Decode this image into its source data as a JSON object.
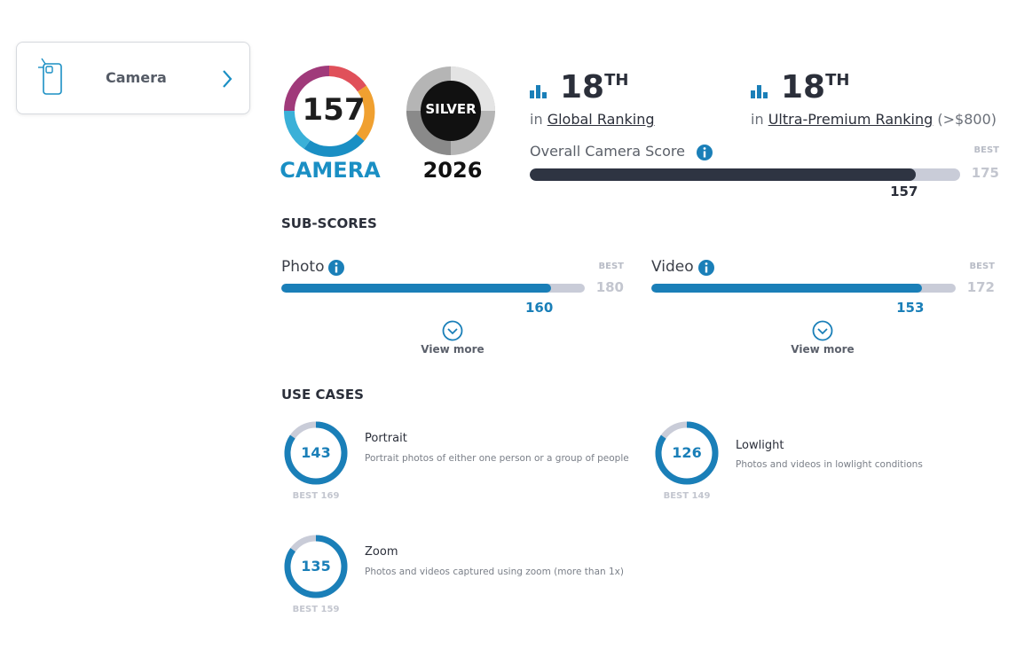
{
  "sidebar": {
    "label": "Camera"
  },
  "badge": {
    "score": 157,
    "label": "CAMERA"
  },
  "award": {
    "label": "SILVER",
    "year": "2026"
  },
  "rankings": [
    {
      "rank": 18,
      "suffix": "TH",
      "prefix": "in",
      "name": "Global Ranking"
    },
    {
      "rank": 18,
      "suffix": "TH",
      "prefix": "in",
      "name": "Ultra-Premium Ranking",
      "note": "(>$800)"
    }
  ],
  "overall": {
    "label": "Overall Camera Score",
    "best_label": "BEST",
    "best": 175,
    "score": 157
  },
  "sub_scores": {
    "title": "SUB-SCORES",
    "items": [
      {
        "name": "Photo",
        "best_label": "BEST",
        "best": 180,
        "score": 160,
        "more": "View more"
      },
      {
        "name": "Video",
        "best_label": "BEST",
        "best": 172,
        "score": 153,
        "more": "View more"
      }
    ]
  },
  "use_cases": {
    "title": "USE CASES",
    "items": [
      {
        "name": "Portrait",
        "description": "Portrait photos of either one person or a group of people",
        "score": 143,
        "best_label": "BEST",
        "best": 169
      },
      {
        "name": "Lowlight",
        "description": "Photos and videos in lowlight conditions",
        "score": 126,
        "best_label": "BEST",
        "best": 149
      },
      {
        "name": "Zoom",
        "description": "Photos and videos captured using zoom (more than 1x)",
        "score": 135,
        "best_label": "BEST",
        "best": 159
      }
    ]
  }
}
